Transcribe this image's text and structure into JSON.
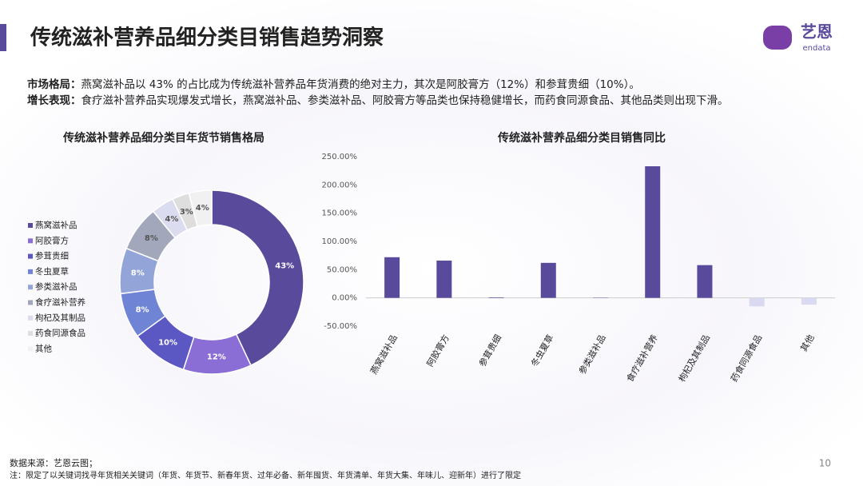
{
  "header": {
    "title": "传统滋补营养品细分类目销售趋势洞察",
    "logo": "艺恩",
    "logo_sub": "endata"
  },
  "summary": [
    {
      "label": "市场格局：",
      "text": "燕窝滋补品以 43% 的占比成为传统滋补营养品年货消费的绝对主力，其次是阿胶膏方（12%）和参茸贵细（10%）。"
    },
    {
      "label": "增长表现：",
      "text": "食疗滋补营养品实现爆发式增长，燕窝滋补品、参类滋补品、阿胶膏方等品类也保持稳健增长，而药食同源食品、其他品类则出现下滑。"
    }
  ],
  "chart_data": [
    {
      "type": "donut",
      "title": "传统滋补营养品细分类目年货节销售格局",
      "legend": "left",
      "categories": [
        "燕窝滋补品",
        "阿胶膏方",
        "参茸贵细",
        "冬虫夏草",
        "参类滋补品",
        "食疗滋补营养",
        "枸杞及其制品",
        "药食同源食品",
        "其他"
      ],
      "values": [
        43,
        12,
        10,
        8,
        8,
        8,
        4,
        3,
        4
      ],
      "value_labels": [
        "43%",
        "12%",
        "10%",
        "8%",
        "8%",
        "8%",
        "4%",
        "3%",
        "4%"
      ],
      "colors": [
        "#5a4a9c",
        "#8a6ed6",
        "#5b58c4",
        "#6f84d4",
        "#93a5d8",
        "#a3a7bb",
        "#dcdcf0",
        "#dedede",
        "#f1f1f1"
      ]
    },
    {
      "type": "bar",
      "title": "传统滋补营养品细分类目销售同比",
      "categories": [
        "燕窝滋补品",
        "阿胶膏方",
        "参茸贵细",
        "冬虫夏草",
        "参类滋补品",
        "食疗滋补营养",
        "枸杞及其制品",
        "药食同源食品",
        "其他"
      ],
      "values": [
        72,
        66,
        1,
        62,
        0.5,
        233,
        58,
        -15,
        -12
      ],
      "colors": [
        "#5a4a9c",
        "#5a4a9c",
        "#5a4a9c",
        "#5a4a9c",
        "#5a4a9c",
        "#5a4a9c",
        "#5a4a9c",
        "#d9d9f1",
        "#d9d9f1"
      ],
      "ylim": [
        -50,
        250
      ],
      "yticks": [
        {
          "value": -50,
          "label": "-50.00%"
        },
        {
          "value": 0,
          "label": "0.00%"
        },
        {
          "value": 50,
          "label": "50.00%"
        },
        {
          "value": 100,
          "label": "100.00%"
        },
        {
          "value": 150,
          "label": "150.00%"
        },
        {
          "value": 200,
          "label": "200.00%"
        },
        {
          "value": 250,
          "label": "250.00%"
        }
      ],
      "grid": false
    }
  ],
  "footer": {
    "source": "数据来源：艺恩云图；",
    "note": "注：限定了以关键词找寻年货相关关键词（年货、年货节、新春年货、过年必备、新年囤货、年货清单、年货大集、年味儿、迎新年）进行了限定",
    "page": "10"
  }
}
